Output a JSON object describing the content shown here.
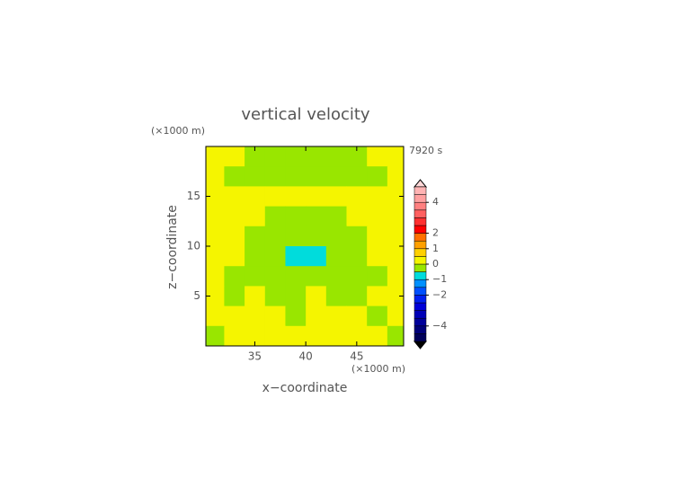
{
  "chart_data": {
    "type": "contour",
    "title": "vertical velocity",
    "time_label": "7920 s",
    "xlabel": "x−coordinate",
    "ylabel": "z−coordinate",
    "x_unit_label": "(×1000 m)",
    "y_unit_label": "(×1000 m)",
    "xlim": [
      30.2,
      49.6
    ],
    "ylim": [
      0,
      20
    ],
    "xticks": [
      35,
      40,
      45
    ],
    "yticks": [
      5,
      10,
      15
    ],
    "x": [
      31,
      33,
      35,
      37,
      39,
      41,
      43,
      45,
      47,
      49
    ],
    "y": [
      19,
      17,
      15,
      13,
      11,
      9,
      7,
      5,
      3,
      1
    ],
    "z": [
      [
        0.25,
        0.25,
        -0.25,
        -0.25,
        -0.25,
        -0.25,
        -0.25,
        -0.25,
        0.25,
        0.25
      ],
      [
        0.25,
        -0.25,
        -0.25,
        -0.25,
        -0.25,
        -0.25,
        -0.25,
        -0.25,
        -0.25,
        0.25
      ],
      [
        0.25,
        0.25,
        0.25,
        0.25,
        0.25,
        0.25,
        0.25,
        0.25,
        0.25,
        0.25
      ],
      [
        0.25,
        0.25,
        0.25,
        -0.25,
        -0.25,
        -0.25,
        -0.25,
        0.25,
        0.25,
        0.25
      ],
      [
        0.25,
        0.25,
        -0.25,
        -0.25,
        -0.25,
        -0.25,
        -0.25,
        -0.25,
        0.25,
        0.25
      ],
      [
        0.25,
        0.25,
        -0.25,
        -0.25,
        -0.75,
        -0.75,
        -0.25,
        -0.25,
        0.25,
        0.25
      ],
      [
        0.25,
        -0.25,
        -0.25,
        -0.25,
        -0.25,
        -0.25,
        -0.25,
        -0.25,
        -0.25,
        0.25
      ],
      [
        0.25,
        -0.25,
        0.25,
        -0.25,
        -0.25,
        0.25,
        -0.25,
        -0.25,
        0.25,
        0.25
      ],
      [
        0.25,
        0.25,
        0.25,
        0.25,
        -0.25,
        0.25,
        0.25,
        0.25,
        -0.25,
        0.25
      ],
      [
        -0.25,
        0.25,
        0.25,
        0.25,
        0.25,
        0.25,
        0.25,
        0.25,
        0.25,
        -0.25
      ]
    ],
    "levels": [
      -5,
      -4.5,
      -4,
      -3.5,
      -3,
      -2.5,
      -2,
      -1.5,
      -1,
      -0.5,
      0,
      0.5,
      1,
      1.5,
      2,
      2.5,
      3,
      3.5,
      4,
      4.5,
      5
    ],
    "colors": [
      "#00005a",
      "#00007a",
      "#00009a",
      "#0000b8",
      "#0000d8",
      "#0020f0",
      "#0050ff",
      "#0090ff",
      "#00dcdc",
      "#99e600",
      "#f5f500",
      "#ffd000",
      "#ffa000",
      "#ff7000",
      "#ff0000",
      "#ff3030",
      "#ff6060",
      "#ff8080",
      "#ffa0a0",
      "#ffb4b4"
    ],
    "colorbar_ticks": [
      4,
      2,
      1,
      0,
      {
        "value": -1,
        "label": "−1"
      },
      {
        "value": -2,
        "label": "−2"
      },
      {
        "value": -4,
        "label": "−4"
      }
    ]
  }
}
